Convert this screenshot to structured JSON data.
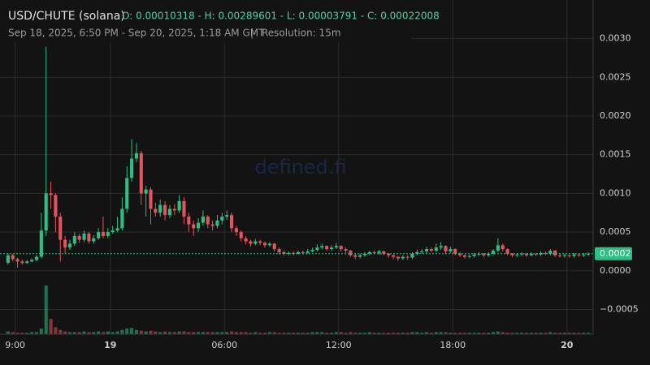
{
  "chart_data": {
    "type": "candlestick",
    "title": "USD/CHUTE (solana)",
    "ohlc_summary": "O: 0.00010318 - H: 0.00289601 - L: 0.00003791 - C: 0.00022008",
    "subtitle": "Sep 18, 2025, 6:50 PM - Sep 20, 2025, 1:18 AM GMT",
    "separator": "|",
    "resolution": "Resolution: 15m",
    "watermark": "defined.fi",
    "up_color": "#2ebd85",
    "down_color": "#e0555e",
    "ylim": [
      -0.00082,
      0.0035
    ],
    "xlim": [
      -1,
      123
    ],
    "yticks": [
      {
        "value": 0.003,
        "label": "0.0030"
      },
      {
        "value": 0.0025,
        "label": "0.0025"
      },
      {
        "value": 0.002,
        "label": "0.0020"
      },
      {
        "value": 0.0015,
        "label": "0.0015"
      },
      {
        "value": 0.001,
        "label": "0.0010"
      },
      {
        "value": 0.0005,
        "label": "0.0005"
      },
      {
        "value": 0,
        "label": "0.0000"
      },
      {
        "value": -0.0005,
        "label": "−0.0005"
      }
    ],
    "xticks": [
      {
        "value": 1.5,
        "label": "9:00"
      },
      {
        "value": 21.5,
        "label": "19"
      },
      {
        "value": 45.5,
        "label": "06:00"
      },
      {
        "value": 69.5,
        "label": "12:00"
      },
      {
        "value": 93.5,
        "label": "18:00"
      },
      {
        "value": 117.5,
        "label": "20"
      }
    ],
    "grid": true,
    "last_price": {
      "value": 0.00022008,
      "label": "0.0002"
    },
    "open": [
      0.00010318,
      0.0002,
      0.00015,
      0.00012,
      0.0001,
      0.00012,
      0.00014,
      0.00018,
      0.00052,
      0.001,
      0.00098,
      0.0007,
      0.0004,
      0.0003,
      0.00035,
      0.00045,
      0.0004,
      0.00048,
      0.00038,
      0.00042,
      0.0005,
      0.00045,
      0.0005,
      0.00052,
      0.00055,
      0.0008,
      0.0012,
      0.00145,
      0.00152,
      0.001,
      0.00105,
      0.0008,
      0.00075,
      0.00085,
      0.00072,
      0.0008,
      0.00078,
      0.0009,
      0.0007,
      0.0006,
      0.00055,
      0.00062,
      0.0007,
      0.0006,
      0.00058,
      0.00065,
      0.0007,
      0.00072,
      0.00055,
      0.0005,
      0.00042,
      0.00038,
      0.00035,
      0.00038,
      0.00036,
      0.00033,
      0.00035,
      0.00028,
      0.00024,
      0.00022,
      0.00023,
      0.00022,
      0.00024,
      0.00023,
      0.00025,
      0.00027,
      0.0003,
      0.00032,
      0.00028,
      0.0003,
      0.00032,
      0.00028,
      0.00026,
      0.0002,
      0.00018,
      0.0002,
      0.00022,
      0.00024,
      0.00023,
      0.00025,
      0.00022,
      0.0002,
      0.00018,
      0.00016,
      0.00018,
      0.00017,
      0.00022,
      0.00024,
      0.00025,
      0.00028,
      0.00026,
      0.0003,
      0.00032,
      0.00025,
      0.00028,
      0.00022,
      0.0002,
      0.00018,
      0.00019,
      0.00021,
      0.00022,
      0.0002,
      0.00022,
      0.00026,
      0.00033,
      0.00028,
      0.00022,
      0.0002,
      0.00021,
      0.00022,
      0.0002,
      0.00022,
      0.00021,
      0.00023,
      0.00022,
      0.00026,
      0.0002,
      0.00019,
      0.0002,
      0.00019,
      0.00021,
      0.0002,
      0.00021
    ],
    "close": [
      0.0002,
      0.00015,
      0.00012,
      0.0001,
      0.00012,
      0.00014,
      0.00018,
      0.00052,
      0.001,
      0.00098,
      0.0007,
      0.0004,
      0.0003,
      0.00035,
      0.00045,
      0.0004,
      0.00048,
      0.00038,
      0.00042,
      0.0005,
      0.00045,
      0.0005,
      0.00052,
      0.00055,
      0.0008,
      0.0012,
      0.00145,
      0.00152,
      0.001,
      0.00105,
      0.0008,
      0.00075,
      0.00085,
      0.00072,
      0.0008,
      0.00078,
      0.0009,
      0.0007,
      0.0006,
      0.00055,
      0.00062,
      0.0007,
      0.0006,
      0.00058,
      0.00065,
      0.0007,
      0.00072,
      0.00055,
      0.0005,
      0.00042,
      0.00038,
      0.00035,
      0.00038,
      0.00036,
      0.00033,
      0.00035,
      0.00028,
      0.00024,
      0.00022,
      0.00023,
      0.00022,
      0.00024,
      0.00023,
      0.00025,
      0.00027,
      0.0003,
      0.00032,
      0.00028,
      0.0003,
      0.00032,
      0.00028,
      0.00026,
      0.0002,
      0.00018,
      0.0002,
      0.00022,
      0.00024,
      0.00023,
      0.00025,
      0.00022,
      0.0002,
      0.00018,
      0.00016,
      0.00018,
      0.00017,
      0.00022,
      0.00024,
      0.00025,
      0.00028,
      0.00026,
      0.0003,
      0.00032,
      0.00025,
      0.00028,
      0.00022,
      0.0002,
      0.00018,
      0.00019,
      0.00021,
      0.00022,
      0.0002,
      0.00022,
      0.00026,
      0.00033,
      0.00028,
      0.00022,
      0.0002,
      0.00021,
      0.00022,
      0.0002,
      0.00022,
      0.00021,
      0.00023,
      0.00022,
      0.00026,
      0.0002,
      0.00019,
      0.0002,
      0.00019,
      0.00021,
      0.0002,
      0.00021,
      0.00022008
    ],
    "high": [
      0.00023,
      0.00022,
      0.00017,
      0.00014,
      0.00014,
      0.00016,
      0.0002,
      0.00075,
      0.00289601,
      0.00115,
      0.001,
      0.00075,
      0.00045,
      0.0004,
      0.0005,
      0.00048,
      0.00052,
      0.0005,
      0.00046,
      0.00055,
      0.0007,
      0.00055,
      0.00058,
      0.0007,
      0.00095,
      0.00135,
      0.0017,
      0.00165,
      0.00155,
      0.0011,
      0.00108,
      0.00088,
      0.00092,
      0.0009,
      0.00085,
      0.00086,
      0.00098,
      0.00095,
      0.00075,
      0.00065,
      0.00068,
      0.00078,
      0.00072,
      0.00065,
      0.00072,
      0.00075,
      0.00078,
      0.00075,
      0.00058,
      0.00052,
      0.00045,
      0.0004,
      0.00041,
      0.0004,
      0.00038,
      0.00037,
      0.00036,
      0.0003,
      0.00026,
      0.00025,
      0.00025,
      0.00026,
      0.00026,
      0.00028,
      0.0003,
      0.00034,
      0.00035,
      0.00033,
      0.00033,
      0.00036,
      0.00033,
      0.0003,
      0.00027,
      0.00022,
      0.00022,
      0.00024,
      0.00026,
      0.00026,
      0.00027,
      0.00026,
      0.00023,
      0.00021,
      0.00019,
      0.0002,
      0.0002,
      0.00024,
      0.00027,
      0.00028,
      0.00031,
      0.0003,
      0.00035,
      0.00037,
      0.00033,
      0.00031,
      0.00029,
      0.00024,
      0.00021,
      0.00021,
      0.00023,
      0.00024,
      0.00023,
      0.00024,
      0.00028,
      0.00042,
      0.00035,
      0.00029,
      0.00023,
      0.00023,
      0.00024,
      0.00023,
      0.00024,
      0.00023,
      0.00025,
      0.00025,
      0.00028,
      0.00027,
      0.00022,
      0.00022,
      0.00021,
      0.00023,
      0.00022,
      0.00023,
      0.00024
    ],
    "low": [
      8e-05,
      0.00012,
      3.791e-05,
      8e-05,
      9e-05,
      0.00011,
      0.00012,
      0.00016,
      0.00045,
      0.0008,
      0.0005,
      0.00012,
      0.00022,
      0.00027,
      0.00032,
      0.00036,
      0.00037,
      0.00035,
      0.00035,
      0.0004,
      0.00042,
      0.00042,
      0.00048,
      0.0005,
      0.00052,
      0.00075,
      0.00115,
      0.0014,
      0.00085,
      0.0007,
      0.0006,
      0.0007,
      0.0007,
      0.00065,
      0.00068,
      0.00072,
      0.00075,
      0.0006,
      0.0005,
      0.00045,
      0.0005,
      0.00058,
      0.00055,
      0.00052,
      0.00055,
      0.0006,
      0.00066,
      0.0005,
      0.00045,
      0.00038,
      0.00034,
      0.00031,
      0.00033,
      0.00033,
      0.0003,
      0.00031,
      0.00025,
      0.00021,
      0.0002,
      0.0002,
      0.0002,
      0.00021,
      0.00021,
      0.00022,
      0.00024,
      0.00025,
      0.00028,
      0.00026,
      0.00026,
      0.00028,
      0.00025,
      0.00023,
      0.00018,
      0.00015,
      0.00016,
      0.00018,
      0.0002,
      0.00021,
      0.00021,
      0.0002,
      0.00017,
      0.00015,
      0.00013,
      0.00014,
      0.00014,
      0.00015,
      0.0002,
      0.00022,
      0.00023,
      0.00024,
      0.00024,
      0.00027,
      0.00022,
      0.00023,
      0.0002,
      0.00018,
      0.00016,
      0.00016,
      0.00017,
      0.00019,
      0.00018,
      0.00018,
      0.0002,
      0.00024,
      0.00025,
      0.0002,
      0.00018,
      0.00018,
      0.00019,
      0.00018,
      0.00019,
      0.00019,
      0.00019,
      0.0002,
      0.0002,
      0.00018,
      0.00017,
      0.00017,
      0.00017,
      0.00017,
      0.00018,
      0.00018,
      0.00019
    ],
    "volume": [
      4,
      3,
      2,
      2,
      2,
      3,
      3,
      8,
      70,
      22,
      10,
      6,
      4,
      3,
      3,
      3,
      4,
      3,
      3,
      4,
      3,
      4,
      3,
      4,
      6,
      8,
      9,
      6,
      5,
      4,
      5,
      4,
      3,
      4,
      3,
      3,
      4,
      4,
      3,
      3,
      3,
      3,
      3,
      3,
      3,
      3,
      3,
      4,
      3,
      3,
      3,
      2,
      3,
      2,
      2,
      3,
      3,
      2,
      2,
      2,
      2,
      2,
      2,
      2,
      3,
      3,
      3,
      2,
      2,
      3,
      3,
      2,
      3,
      2,
      2,
      2,
      3,
      2,
      2,
      2,
      2,
      2,
      2,
      2,
      2,
      3,
      3,
      2,
      3,
      2,
      3,
      3,
      3,
      2,
      2,
      2,
      2,
      2,
      2,
      2,
      2,
      2,
      3,
      4,
      3,
      2,
      2,
      2,
      2,
      2,
      2,
      2,
      2,
      2,
      3,
      2,
      2,
      2,
      2,
      2,
      2,
      2,
      2
    ]
  }
}
